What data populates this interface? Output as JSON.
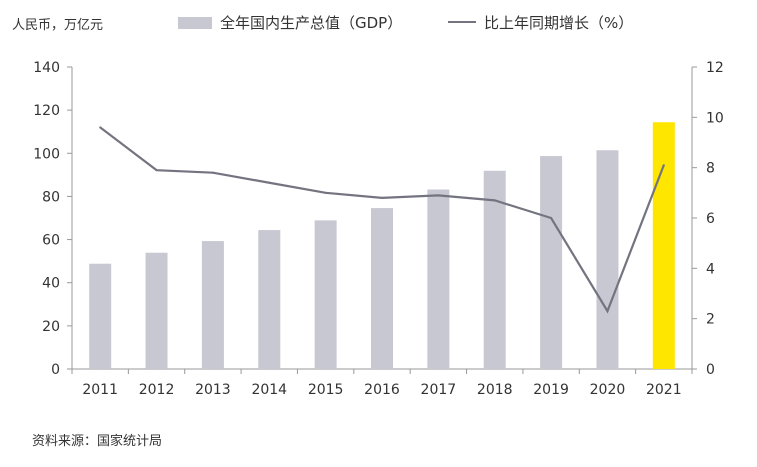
{
  "chart_data": {
    "type": "bar+line",
    "unit_label": "人民币，万亿元",
    "source": "资料来源：国家统计局",
    "categories": [
      "2011",
      "2012",
      "2013",
      "2014",
      "2015",
      "2016",
      "2017",
      "2018",
      "2019",
      "2020",
      "2021"
    ],
    "series": [
      {
        "name": "全年国内生产总值（GDP）",
        "type": "bar",
        "axis": "left",
        "color": "#c8c8d2",
        "highlight_color": "#ffe600",
        "highlight_category": "2021",
        "values": [
          48.8,
          53.9,
          59.3,
          64.4,
          68.9,
          74.6,
          83.2,
          91.9,
          98.7,
          101.4,
          114.4
        ]
      },
      {
        "name": "比上年同期增长（%）",
        "type": "line",
        "axis": "right",
        "color": "#747480",
        "values": [
          9.6,
          7.9,
          7.8,
          7.4,
          7.0,
          6.8,
          6.9,
          6.7,
          6.0,
          2.3,
          8.1
        ]
      }
    ],
    "y_left": {
      "range": [
        0,
        140
      ],
      "ticks": [
        "0",
        "20",
        "40",
        "60",
        "80",
        "100",
        "120",
        "140"
      ]
    },
    "y_right": {
      "range": [
        0,
        12
      ],
      "ticks": [
        "0",
        "2",
        "4",
        "6",
        "8",
        "10",
        "12"
      ]
    },
    "grid": false,
    "legend_position": "top"
  }
}
